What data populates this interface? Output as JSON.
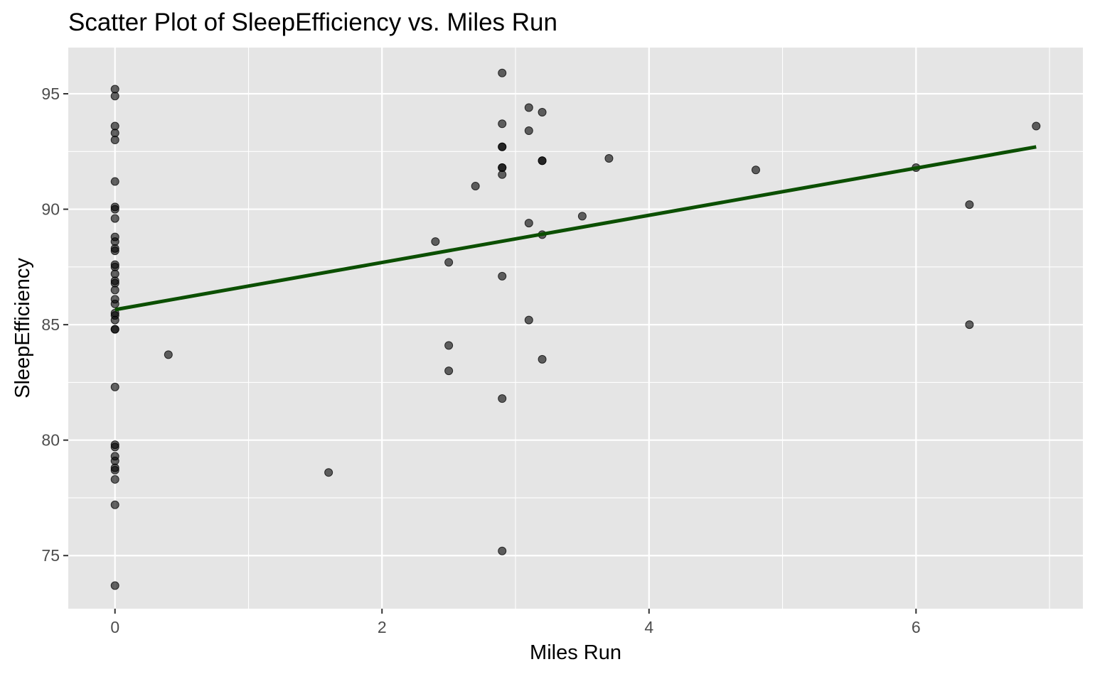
{
  "chart_data": {
    "type": "scatter",
    "title": "Scatter Plot of SleepEfficiency vs. Miles Run",
    "xlabel": "Miles Run",
    "ylabel": "SleepEfficiency",
    "xlim": [
      -0.35,
      7.25
    ],
    "ylim": [
      72.7,
      97.0
    ],
    "x_ticks": [
      0,
      2,
      4,
      6
    ],
    "y_ticks": [
      75,
      80,
      85,
      90,
      95
    ],
    "grid": true,
    "legend": "none",
    "colors": {
      "panel": "#E5E5E5",
      "grid": "#FFFFFF",
      "points": "#000000",
      "trend_line": "#0B4F00",
      "text": "#000000",
      "tick_text": "#4D4D4D"
    },
    "series": [
      {
        "points": [
          {
            "x": 0,
            "y": 95.2
          },
          {
            "x": 0,
            "y": 94.9
          },
          {
            "x": 0,
            "y": 93.6
          },
          {
            "x": 0,
            "y": 93.3
          },
          {
            "x": 0,
            "y": 93.0
          },
          {
            "x": 0,
            "y": 91.2
          },
          {
            "x": 0,
            "y": 90.1
          },
          {
            "x": 0,
            "y": 90.0
          },
          {
            "x": 0,
            "y": 89.6
          },
          {
            "x": 0,
            "y": 88.8
          },
          {
            "x": 0,
            "y": 88.6
          },
          {
            "x": 0,
            "y": 88.3
          },
          {
            "x": 0,
            "y": 88.2
          },
          {
            "x": 0,
            "y": 87.6
          },
          {
            "x": 0,
            "y": 87.5
          },
          {
            "x": 0,
            "y": 87.2
          },
          {
            "x": 0,
            "y": 86.9
          },
          {
            "x": 0,
            "y": 86.8
          },
          {
            "x": 0,
            "y": 86.5
          },
          {
            "x": 0,
            "y": 86.1
          },
          {
            "x": 0,
            "y": 85.9
          },
          {
            "x": 0,
            "y": 85.5
          },
          {
            "x": 0,
            "y": 85.4
          },
          {
            "x": 0,
            "y": 85.2
          },
          {
            "x": 0,
            "y": 84.8
          },
          {
            "x": 0,
            "y": 84.8
          },
          {
            "x": 0,
            "y": 82.3
          },
          {
            "x": 0,
            "y": 79.8
          },
          {
            "x": 0,
            "y": 79.7
          },
          {
            "x": 0,
            "y": 79.3
          },
          {
            "x": 0,
            "y": 79.1
          },
          {
            "x": 0,
            "y": 78.8
          },
          {
            "x": 0,
            "y": 78.7
          },
          {
            "x": 0,
            "y": 78.3
          },
          {
            "x": 0,
            "y": 77.2
          },
          {
            "x": 0,
            "y": 73.7
          },
          {
            "x": 0.4,
            "y": 83.7
          },
          {
            "x": 1.6,
            "y": 78.6
          },
          {
            "x": 2.4,
            "y": 88.6
          },
          {
            "x": 2.5,
            "y": 87.7
          },
          {
            "x": 2.5,
            "y": 84.1
          },
          {
            "x": 2.5,
            "y": 83.0
          },
          {
            "x": 2.7,
            "y": 91.0
          },
          {
            "x": 2.9,
            "y": 95.9
          },
          {
            "x": 2.9,
            "y": 93.7
          },
          {
            "x": 2.9,
            "y": 92.7
          },
          {
            "x": 2.9,
            "y": 92.7
          },
          {
            "x": 2.9,
            "y": 91.8
          },
          {
            "x": 2.9,
            "y": 91.8
          },
          {
            "x": 2.9,
            "y": 91.5
          },
          {
            "x": 2.9,
            "y": 87.1
          },
          {
            "x": 2.9,
            "y": 81.8
          },
          {
            "x": 2.9,
            "y": 75.2
          },
          {
            "x": 3.1,
            "y": 94.4
          },
          {
            "x": 3.1,
            "y": 93.4
          },
          {
            "x": 3.1,
            "y": 89.4
          },
          {
            "x": 3.1,
            "y": 85.2
          },
          {
            "x": 3.2,
            "y": 94.2
          },
          {
            "x": 3.2,
            "y": 92.1
          },
          {
            "x": 3.2,
            "y": 92.1
          },
          {
            "x": 3.2,
            "y": 88.9
          },
          {
            "x": 3.2,
            "y": 83.5
          },
          {
            "x": 3.5,
            "y": 89.7
          },
          {
            "x": 3.7,
            "y": 92.2
          },
          {
            "x": 4.8,
            "y": 91.7
          },
          {
            "x": 6.0,
            "y": 91.8
          },
          {
            "x": 6.4,
            "y": 90.2
          },
          {
            "x": 6.4,
            "y": 85.0
          },
          {
            "x": 6.9,
            "y": 93.6
          }
        ]
      }
    ],
    "trend_line": {
      "x": [
        0,
        6.9
      ],
      "y": [
        85.65,
        92.7
      ]
    }
  }
}
